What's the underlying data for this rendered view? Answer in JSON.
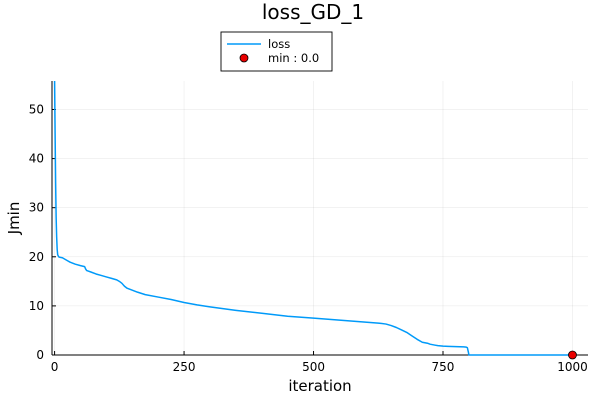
{
  "chart_data": {
    "type": "line",
    "title": "loss_GD_1",
    "xlabel": "iteration",
    "ylabel": "Jmin",
    "xlim": [
      -5,
      1030
    ],
    "ylim": [
      0,
      55.8
    ],
    "xticks": [
      0,
      250,
      500,
      750,
      1000
    ],
    "yticks": [
      0,
      10,
      20,
      30,
      40,
      50
    ],
    "grid": true,
    "legend_position": "top",
    "series": [
      {
        "name": "loss",
        "color": "#009af9",
        "x": [
          0,
          1,
          2,
          3,
          4,
          5,
          6,
          8,
          10,
          15,
          20,
          25,
          30,
          40,
          50,
          58,
          60,
          62,
          65,
          70,
          80,
          90,
          100,
          110,
          120,
          125,
          130,
          135,
          140,
          145,
          150,
          160,
          175,
          200,
          225,
          250,
          275,
          300,
          350,
          400,
          450,
          500,
          550,
          600,
          625,
          640,
          650,
          660,
          670,
          680,
          690,
          700,
          710,
          720,
          725,
          730,
          735,
          740,
          750,
          760,
          775,
          790,
          795,
          797,
          799,
          800,
          850,
          900,
          950,
          1000
        ],
        "y": [
          55.8,
          45.0,
          35.0,
          28.0,
          24.0,
          21.5,
          20.4,
          20.0,
          19.9,
          19.8,
          19.5,
          19.2,
          18.9,
          18.5,
          18.2,
          18.0,
          17.5,
          17.2,
          17.1,
          16.9,
          16.5,
          16.2,
          15.9,
          15.6,
          15.3,
          15.0,
          14.6,
          14.0,
          13.6,
          13.4,
          13.2,
          12.8,
          12.3,
          11.8,
          11.3,
          10.7,
          10.2,
          9.8,
          9.1,
          8.5,
          7.9,
          7.5,
          7.1,
          6.7,
          6.5,
          6.3,
          6.0,
          5.6,
          5.1,
          4.6,
          3.9,
          3.2,
          2.6,
          2.4,
          2.2,
          2.1,
          2.0,
          1.9,
          1.8,
          1.75,
          1.7,
          1.65,
          1.6,
          1.5,
          0.6,
          0.0,
          0.0,
          0.0,
          0.0,
          0.0
        ]
      },
      {
        "name": "min : 0.0",
        "type": "scatter",
        "color": "#e90000",
        "x": [
          1000
        ],
        "y": [
          0.0
        ]
      }
    ]
  }
}
